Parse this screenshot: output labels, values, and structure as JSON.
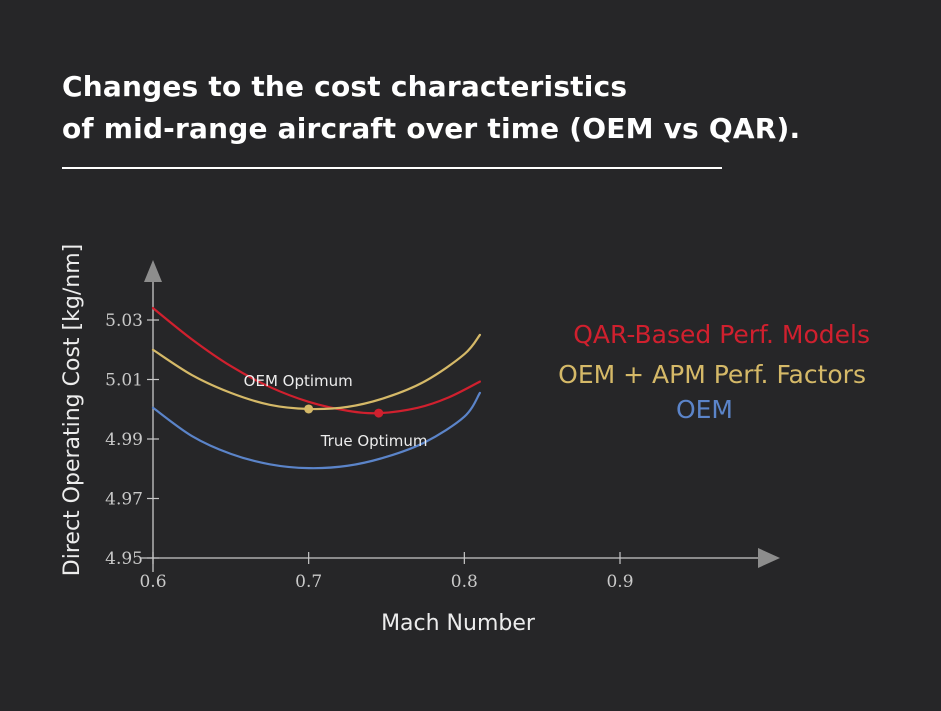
{
  "title": {
    "line1": "Changes to the cost characteristics",
    "line2": "of mid-range aircraft over time (OEM vs QAR)."
  },
  "chart_data": {
    "type": "line",
    "xlabel": "Mach Number",
    "ylabel": "Direct Operating Cost [kg/nm]",
    "xlim": [
      0.6,
      0.9
    ],
    "ylim": [
      4.95,
      5.03
    ],
    "x_ticks": [
      "0.6",
      "0.7",
      "0.8",
      "0.9"
    ],
    "y_ticks": [
      "4.95",
      "4.97",
      "4.99",
      "5.01",
      "5.03"
    ],
    "grid": false,
    "legend_position": "right",
    "series": [
      {
        "name": "QAR-Based Perf. Models",
        "color": "#d0202e",
        "x": [
          0.6,
          0.625,
          0.65,
          0.675,
          0.7,
          0.725,
          0.745,
          0.77,
          0.79,
          0.81
        ],
        "y": [
          5.034,
          5.0235,
          5.0145,
          5.0075,
          5.0025,
          4.9995,
          4.9987,
          5.0005,
          5.004,
          5.0093
        ]
      },
      {
        "name": "OEM + APM Perf. Factors",
        "color": "#d5b968",
        "x": [
          0.6,
          0.625,
          0.65,
          0.675,
          0.7,
          0.725,
          0.75,
          0.775,
          0.8,
          0.81
        ],
        "y": [
          5.02,
          5.0115,
          5.0055,
          5.0015,
          5.0001,
          5.0008,
          5.004,
          5.0095,
          5.0185,
          5.025
        ]
      },
      {
        "name": "OEM",
        "color": "#5b84c9",
        "x": [
          0.6,
          0.625,
          0.65,
          0.675,
          0.7,
          0.725,
          0.75,
          0.775,
          0.8,
          0.81
        ],
        "y": [
          5.0005,
          4.991,
          4.985,
          4.9815,
          4.9802,
          4.981,
          4.984,
          4.989,
          4.9975,
          5.0055
        ]
      }
    ],
    "points": [
      {
        "label": "OEM Optimum",
        "x": 0.7,
        "y": 5.0001,
        "color": "#d5b968"
      },
      {
        "label": "True Optimum",
        "x": 0.745,
        "y": 4.9987,
        "color": "#d0202e"
      }
    ]
  }
}
